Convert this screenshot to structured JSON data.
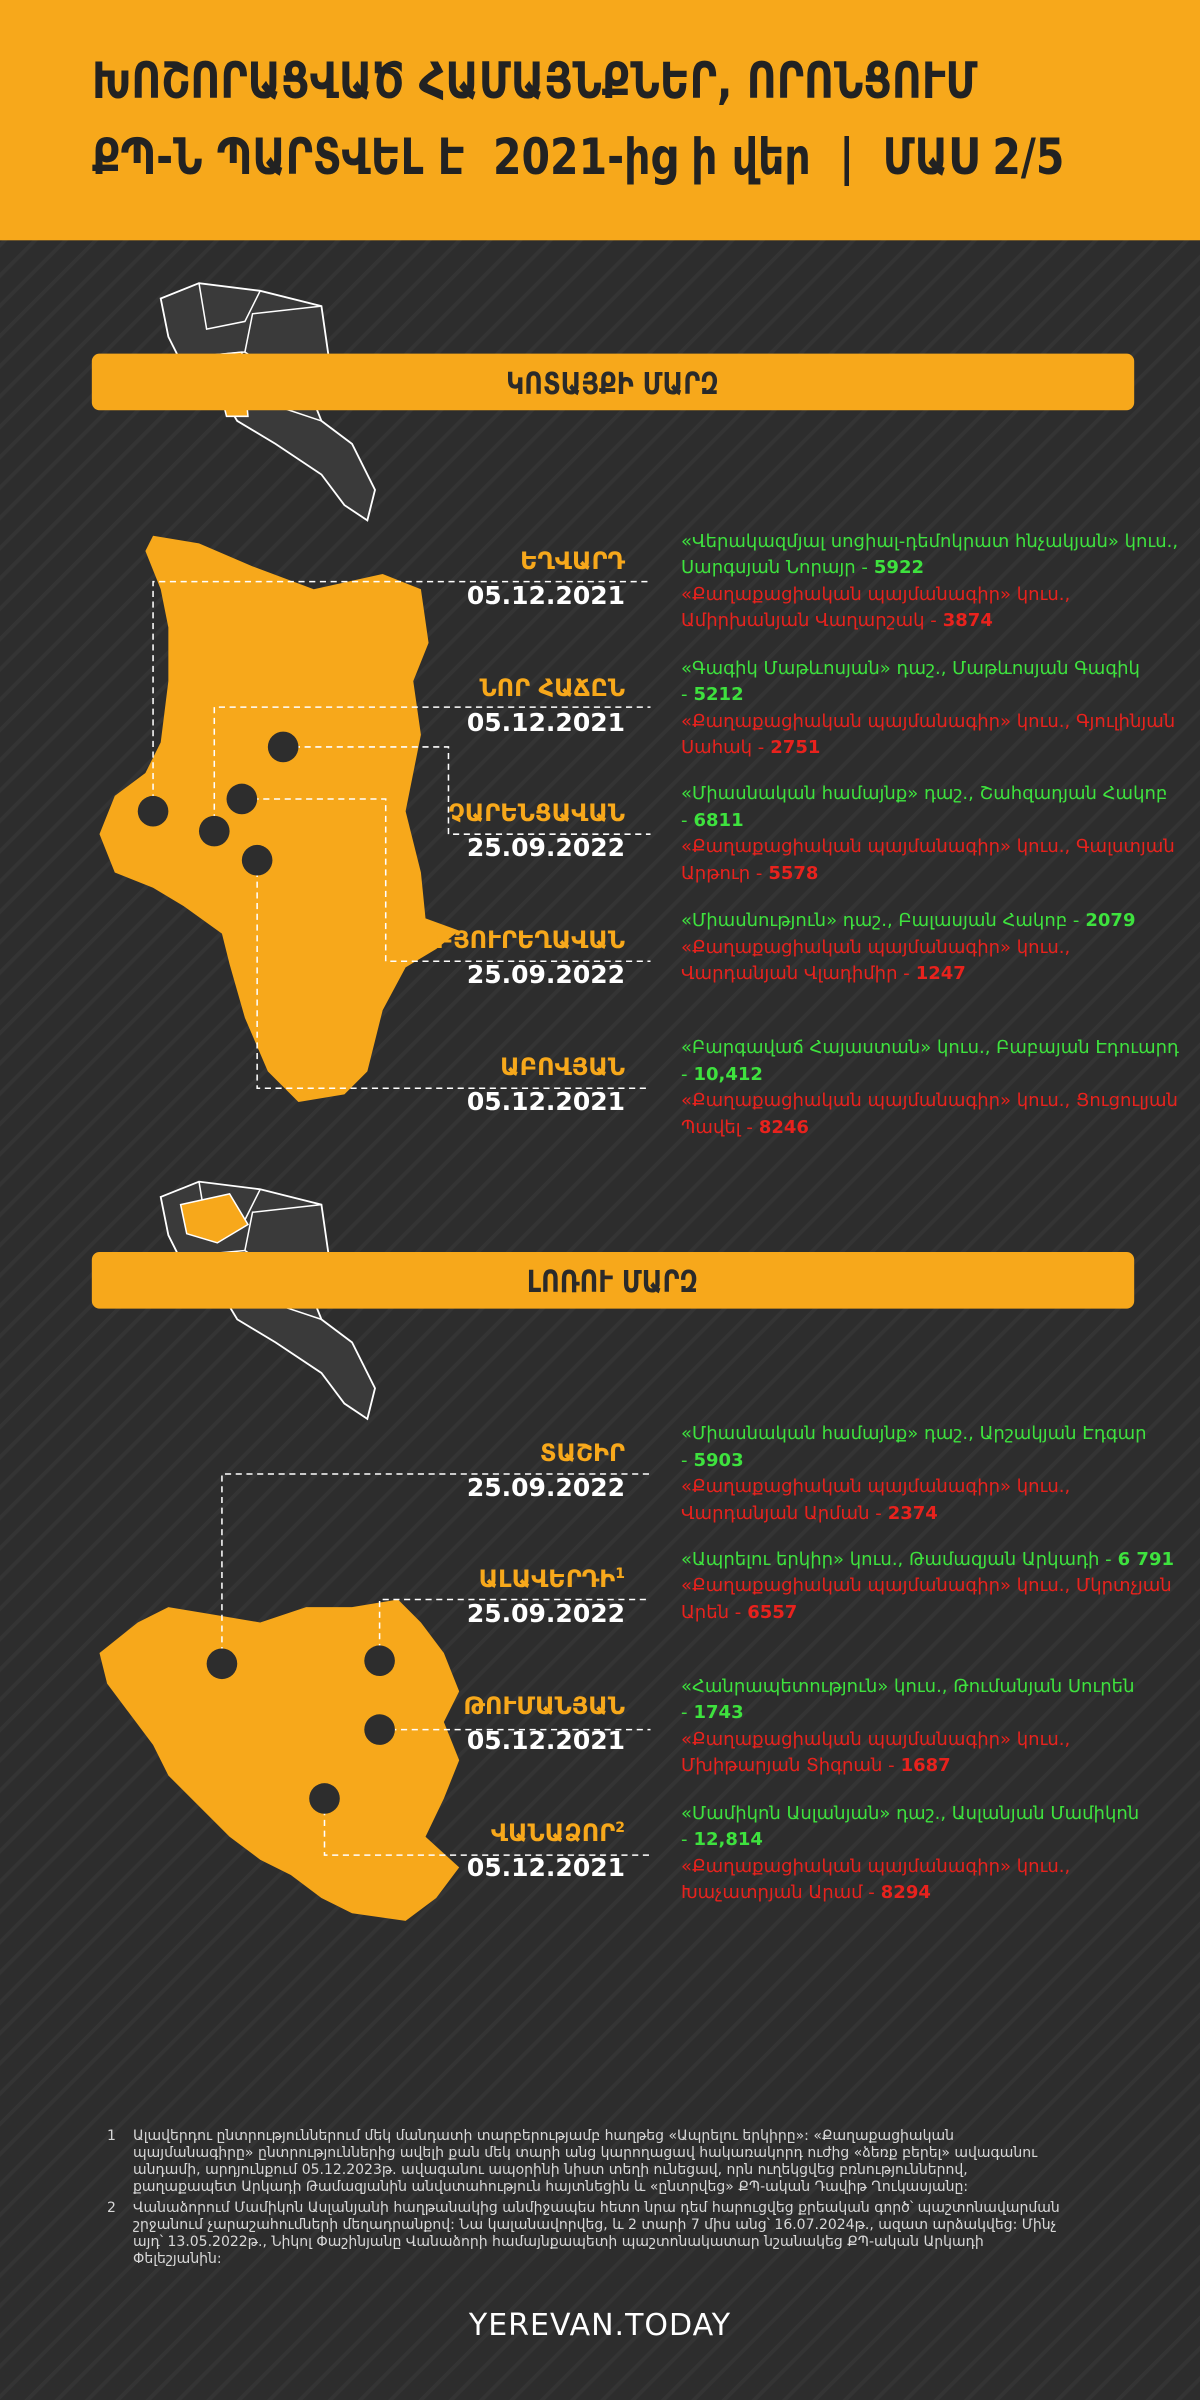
{
  "header": {
    "title_line1": "ԽՈՇՈՐԱՑՎԱԾ ՀԱՄԱՅՆՔՆԵՐ, ՈՐՈՆՑՈՒՄ",
    "title_line2": "ՔՊ-Ն ՊԱՐՏՎԵԼ Է  2021-ից ի վեր  |  ՄԱՍ 2/5"
  },
  "sections": [
    {
      "title": "ԿՈՏԱՅՔԻ ՄԱՐԶ",
      "communities": [
        {
          "name": "ԵՂՎԱՐԴ",
          "date": "05.12.2021",
          "winner": {
            "party": "«Վերակազմյալ սոցիալ-դեմոկրատ հնչակյան» կուս.,",
            "candidate": "Սարգսյան Նորայր -",
            "votes": "5922"
          },
          "runner_up": {
            "party": "«Քաղաքացիական պայմանագիր» կուս.,",
            "candidate": "Ամիրխանյան Վաղարշակ -",
            "votes": "3874"
          }
        },
        {
          "name": "ՆՈՐ ՀԱՃԸՆ",
          "date": "05.12.2021",
          "winner": {
            "party": "«Գագիկ Մաթևոսյան» դաշ.,",
            "candidate": "Մաթևոսյան Գագիկ -",
            "votes": "5212"
          },
          "runner_up": {
            "party": "«Քաղաքացիական պայմանագիր» կուս.,",
            "candidate": "Գյուլինյան Սահակ -",
            "votes": "2751"
          }
        },
        {
          "name": "ՉԱՐԵՆՑԱՎԱՆ",
          "date": "25.09.2022",
          "winner": {
            "party": "«Միասնական համայնք» դաշ.,",
            "candidate": "Շահզադյան Հակոբ -",
            "votes": "6811"
          },
          "runner_up": {
            "party": "«Քաղաքացիական պայմանագիր» կուս.,",
            "candidate": "Գալստյան Արթուր -",
            "votes": "5578"
          }
        },
        {
          "name": "ԲՅՈՒՐԵՂԱՎԱՆ",
          "date": "25.09.2022",
          "winner": {
            "party": "«Միասնություն» դաշ.,",
            "candidate": "Բալասյան Հակոբ -",
            "votes": "2079"
          },
          "runner_up": {
            "party": "«Քաղաքացիական պայմանագիր» կուս.,",
            "candidate": "Վարդանյան Վլադիմիր -",
            "votes": "1247"
          }
        },
        {
          "name": "ԱԲՈՎՅԱՆ",
          "date": "05.12.2021",
          "winner": {
            "party": "«Բարգավաճ Հայաստան» կուս.,",
            "candidate": "Բաբայան Էդուարդ -",
            "votes": "10,412"
          },
          "runner_up": {
            "party": "«Քաղաքացիական պայմանագիր» կուս.,",
            "candidate": "Ցուցուլյան Պավել -",
            "votes": "8246"
          }
        }
      ]
    },
    {
      "title": "ԼՈՌՈՒ ՄԱՐԶ",
      "communities": [
        {
          "name": "ՏԱՇԻՐ",
          "date": "25.09.2022",
          "winner": {
            "party": "«Միասնական համայնք» դաշ.,",
            "candidate": "Արշակյան Էդգար -",
            "votes": "5903"
          },
          "runner_up": {
            "party": "«Քաղաքացիական պայմանագիր» կուս.,",
            "candidate": "Վարդանյան Արման -",
            "votes": "2374"
          }
        },
        {
          "name": "ԱԼԱՎԵՐԴԻ",
          "note": "1",
          "date": "25.09.2022",
          "winner": {
            "party": "«Ապրելու երկիր» կուս.,",
            "candidate": "Թամազյան Արկադի -",
            "votes": "6 791"
          },
          "runner_up": {
            "party": "«Քաղաքացիական պայմանագիր» կուս.,",
            "candidate": "Մկրտչյան Արեն -",
            "votes": "6557"
          }
        },
        {
          "name": "ԹՈՒՄԱՆՅԱՆ",
          "date": "05.12.2021",
          "winner": {
            "party": "«Հանրապետություն» կուս.,",
            "candidate": "Թումանյան Սուրեն -",
            "votes": "1743"
          },
          "runner_up": {
            "party": "«Քաղաքացիական պայմանագիր» կուս.,",
            "candidate": "Մխիթարյան Տիգրան -",
            "votes": "1687"
          }
        },
        {
          "name": "ՎԱՆԱՁՈՐ",
          "note": "2",
          "date": "05.12.2021",
          "winner": {
            "party": "«Մամիկոն Ասլանյան» դաշ.,",
            "candidate": "Ասլանյան Մամիկոն -",
            "votes": "12,814"
          },
          "runner_up": {
            "party": "«Քաղաքացիական պայմանագիր» կուս.,",
            "candidate": "Խաչատրյան Արամ -",
            "votes": "8294"
          }
        }
      ]
    }
  ],
  "footnotes": [
    {
      "number": "1",
      "text": "Ալավերդու ընտրություններում մեկ մանդատի տարբերությամբ հաղթեց «Ապրելու երկիրը»: «Քաղաքացիական պայմանագիրը» ընտրություններից ավելի քան մեկ տարի անց կարողացավ հակառակորդ ուժից «ձեռք բերել» ավագանու անդամի, արդյունքում 05.12.2023թ. ավագանու ապօրինի նիստ տեղի ունեցավ, որն ուղեկցվեց բռնություններով, քաղաքապետ Արկադի Թամազյանին անվստահություն հայտնեցին և «ընտրվեց» ՔՊ-ական Դավիթ Ղուկասյանը:"
    },
    {
      "number": "2",
      "text": "Վանաձորում Մամիկոն Ասլանյանի հաղթանակից անմիջապես հետո նրա դեմ հարուցվեց քրեական գործ՝ պաշտոնավարման շրջանում չարաշահումների մեղադրանքով: Նա կալանավորվեց, և 2 տարի 7 միս անց՝ 16.07.2024թ., ազատ արձակվեց: Մինչ այդ՝ 13.05.2022թ., Նիկոլ Փաշինյանը Վանաձորի համայնքապետի պաշտոնակատար նշանակեց ՔՊ-ական Արկադի Փելեշյանին:"
    }
  ],
  "logo": "YEREVAN.TODAY"
}
